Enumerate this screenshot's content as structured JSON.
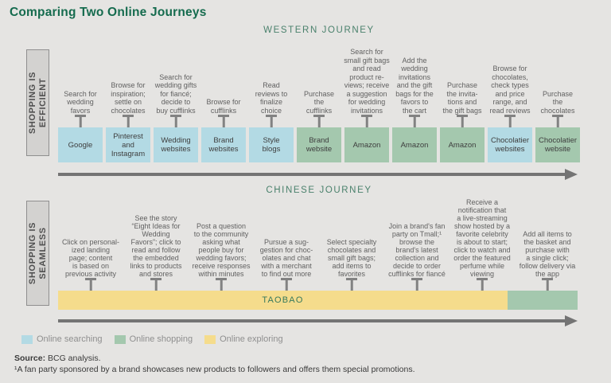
{
  "title": "Comparing Two Online Journeys",
  "colors": {
    "searching": "#b3dae4",
    "shopping": "#a4c8ae",
    "exploring": "#f5dc8c"
  },
  "western": {
    "header": "WESTERN JOURNEY",
    "sidebar": "SHOPPING IS\nEFFICIENT",
    "steps": [
      {
        "label": "Search for\nwedding\nfavors",
        "platform": "Google",
        "type": "searching"
      },
      {
        "label": "Browse for\ninspiration;\nsettle on\nchocolates",
        "platform": "Pinterest\nand\nInstagram",
        "type": "searching"
      },
      {
        "label": "Search for\nwedding gifts\nfor fiancé;\ndecide to\nbuy cufflinks",
        "platform": "Wedding\nwebsites",
        "type": "searching"
      },
      {
        "label": "Browse for\ncufflinks",
        "platform": "Brand\nwebsites",
        "type": "searching"
      },
      {
        "label": "Read\nreviews to\nfinalize\nchoice",
        "platform": "Style\nblogs",
        "type": "searching"
      },
      {
        "label": "Purchase\nthe\ncufflinks",
        "platform": "Brand\nwebsite",
        "type": "shopping"
      },
      {
        "label": "Search for\nsmall gift bags\nand read\nproduct re-\nviews; receive\na suggestion\nfor wedding\ninvitations",
        "platform": "Amazon",
        "type": "shopping"
      },
      {
        "label": "Add the\nwedding\ninvitations\nand the gift\nbags for the\nfavors to\nthe cart",
        "platform": "Amazon",
        "type": "shopping"
      },
      {
        "label": "Purchase\nthe invita-\ntions and\nthe gift bags",
        "platform": "Amazon",
        "type": "shopping"
      },
      {
        "label": "Browse for\nchocolates,\ncheck types\nand price\nrange, and\nread reviews",
        "platform": "Chocolatier\nwebsites",
        "type": "searching"
      },
      {
        "label": "Purchase\nthe\nchocolates",
        "platform": "Chocolatier\nwebsite",
        "type": "shopping"
      }
    ]
  },
  "chinese": {
    "header": "CHINESE JOURNEY",
    "sidebar": "SHOPPING IS\nSEAMLESS",
    "platform": "TAOBAO",
    "bar_main_type": "exploring",
    "bar_end_type": "shopping",
    "steps": [
      {
        "label": "Click on personal-\nized landing\npage; content\nis based on\nprevious activity"
      },
      {
        "label": "See the story\n“Eight Ideas for\nWedding\nFavors”; click to\nread and follow\nthe embedded\nlinks to products\nand stores"
      },
      {
        "label": "Post a question\nto the community\nasking what\npeople buy for\nwedding favors;\nreceive responses\nwithin minutes"
      },
      {
        "label": "Pursue a sug-\ngestion for choc-\nolates and chat\nwith a merchant\nto find out more"
      },
      {
        "label": "Select specialty\nchocolates and\nsmall gift bags;\nadd items to\nfavorites"
      },
      {
        "label": "Join a brand's fan\nparty on Tmall;¹\nbrowse the\nbrand's latest\ncollection and\ndecide to order\ncufflinks for fiancé"
      },
      {
        "label": "Receive a\nnotification that\na live-streaming\nshow hosted by a\nfavorite celebrity\nis about to start;\nclick to watch and\norder the featured\nperfume while\nviewing"
      },
      {
        "label": "Add all items to\nthe basket and\npurchase with\na single click;\nfollow delivery via\nthe app"
      }
    ]
  },
  "legend": [
    {
      "label": "Online searching",
      "type": "searching"
    },
    {
      "label": "Online shopping",
      "type": "shopping"
    },
    {
      "label": "Online exploring",
      "type": "exploring"
    }
  ],
  "source": {
    "label": "Source:",
    "text": "BCG analysis."
  },
  "footnote": "¹A fan party sponsored by a brand showcases new products to followers and offers them special promotions."
}
